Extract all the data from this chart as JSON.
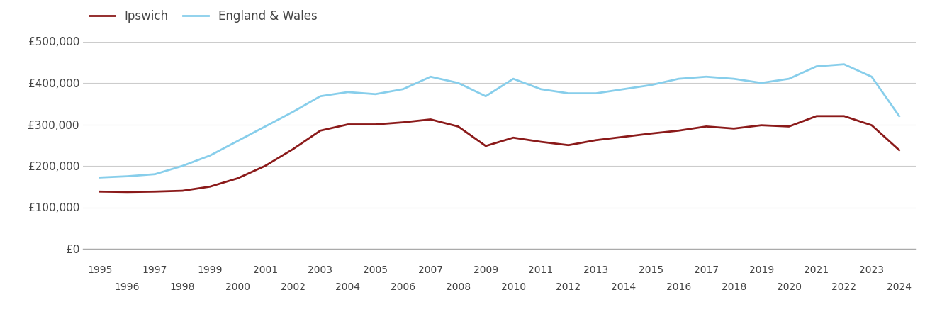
{
  "years": [
    1995,
    1996,
    1997,
    1998,
    1999,
    2000,
    2001,
    2002,
    2003,
    2004,
    2005,
    2006,
    2007,
    2008,
    2009,
    2010,
    2011,
    2012,
    2013,
    2014,
    2015,
    2016,
    2017,
    2018,
    2019,
    2020,
    2021,
    2022,
    2023,
    2024
  ],
  "ipswich": [
    138000,
    137000,
    138000,
    140000,
    150000,
    170000,
    200000,
    240000,
    285000,
    300000,
    300000,
    305000,
    312000,
    295000,
    248000,
    268000,
    258000,
    250000,
    262000,
    270000,
    278000,
    285000,
    295000,
    290000,
    298000,
    295000,
    320000,
    320000,
    298000,
    238000
  ],
  "england_wales": [
    172000,
    175000,
    180000,
    200000,
    225000,
    260000,
    295000,
    330000,
    368000,
    378000,
    373000,
    385000,
    415000,
    400000,
    368000,
    410000,
    385000,
    375000,
    375000,
    385000,
    395000,
    410000,
    415000,
    410000,
    400000,
    410000,
    440000,
    445000,
    415000,
    320000
  ],
  "ipswich_color": "#8b1a1a",
  "ew_color": "#87ceeb",
  "background_color": "#ffffff",
  "grid_color": "#cccccc",
  "legend_labels": [
    "Ipswich",
    "England & Wales"
  ],
  "ylim": [
    0,
    500000
  ],
  "yticks": [
    0,
    100000,
    200000,
    300000,
    400000,
    500000
  ],
  "ytick_labels": [
    "£0",
    "£100,000",
    "£200,000",
    "£300,000",
    "£400,000",
    "£500,000"
  ],
  "line_width": 2.0,
  "xlim_left": 1994.4,
  "xlim_right": 2024.6
}
